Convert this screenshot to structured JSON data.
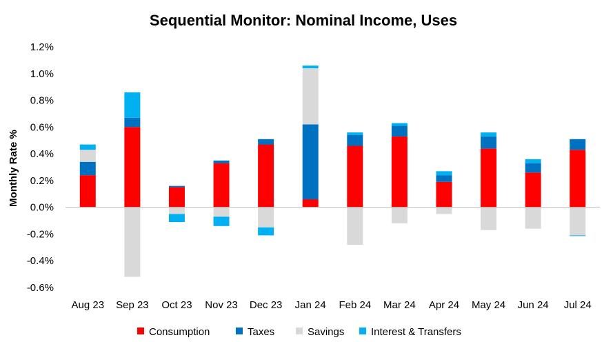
{
  "chart_data": {
    "type": "bar",
    "stacked": true,
    "title": "Sequential Monitor: Nominal Income, Uses",
    "xlabel": "",
    "ylabel": "Monthly Rate %",
    "ylim": [
      -0.6,
      1.2
    ],
    "yticks": [
      "-0.6%",
      "-0.4%",
      "-0.2%",
      "0.0%",
      "0.2%",
      "0.4%",
      "0.6%",
      "0.8%",
      "1.0%",
      "1.2%"
    ],
    "grid": false,
    "legend_position": "bottom",
    "categories": [
      "Aug 23",
      "Sep 23",
      "Oct 23",
      "Nov 23",
      "Dec 23",
      "Jan 24",
      "Feb 24",
      "Mar 24",
      "Apr 24",
      "May 24",
      "Jun 24",
      "Jul 24"
    ],
    "series": [
      {
        "name": "Consumption",
        "color": "#ff0000",
        "values": [
          0.24,
          0.6,
          0.15,
          0.33,
          0.47,
          0.06,
          0.46,
          0.53,
          0.19,
          0.44,
          0.26,
          0.43
        ]
      },
      {
        "name": "Taxes",
        "color": "#0070c0",
        "values": [
          0.1,
          0.07,
          0.01,
          0.02,
          0.04,
          0.56,
          0.08,
          0.08,
          0.05,
          0.09,
          0.07,
          0.08
        ]
      },
      {
        "name": "Savings",
        "color": "#d9d9d9",
        "values": [
          0.09,
          -0.52,
          -0.05,
          -0.07,
          -0.15,
          0.42,
          -0.28,
          -0.12,
          -0.05,
          -0.17,
          -0.16,
          -0.21
        ]
      },
      {
        "name": "Interest & Transfers",
        "color": "#00b0f0",
        "values": [
          0.04,
          0.19,
          -0.06,
          -0.07,
          -0.06,
          0.02,
          0.02,
          0.02,
          0.03,
          0.03,
          0.03,
          -0.005
        ]
      }
    ]
  }
}
